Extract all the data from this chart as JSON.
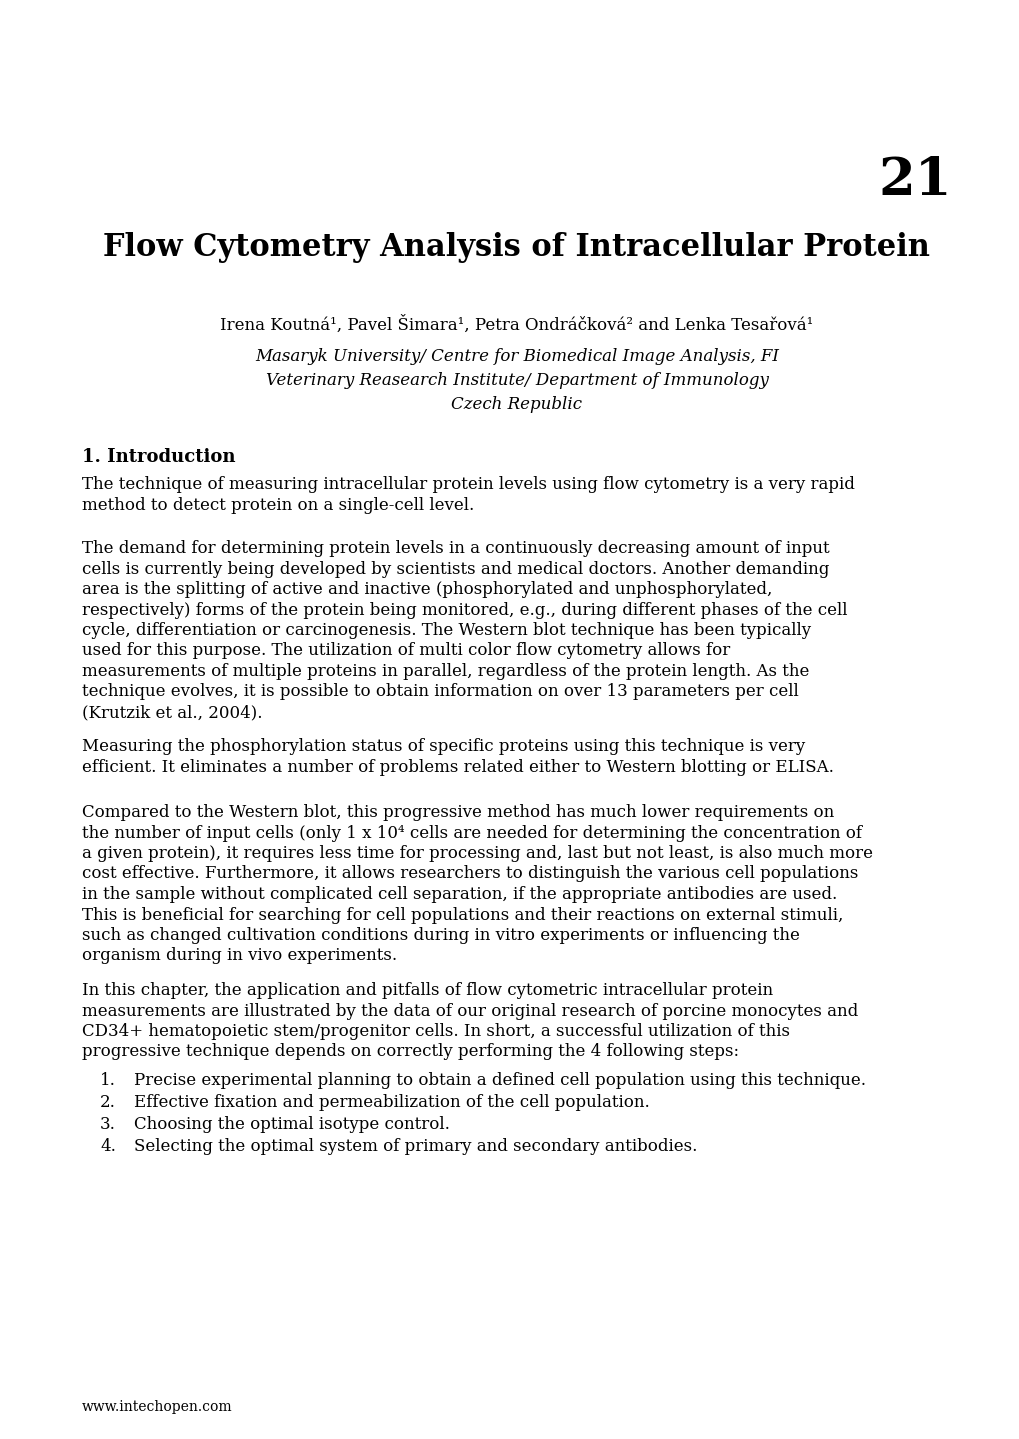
{
  "chapter_number": "21",
  "title": "Flow Cytometry Analysis of Intracellular Protein",
  "authors": "Irena Koutná¹, Pavel Šimara¹, Petra Ondráčková² and Lenka Tesařová¹",
  "affiliation1": "Masaryk University/ Centre for Biomedical Image Analysis, FI",
  "affiliation2": "Veterinary Reasearch Institute/ Department of Immunology",
  "affiliation3": "Czech Republic",
  "section_heading": "1. Introduction",
  "para1_lines": [
    "The technique of measuring intracellular protein levels using flow cytometry is a very rapid",
    "method to detect protein on a single-cell level."
  ],
  "para2_lines": [
    "The demand for determining protein levels in a continuously decreasing amount of input",
    "cells is currently being developed by scientists and medical doctors. Another demanding",
    "area is the splitting of active and inactive (phosphorylated and unphosphorylated,",
    "respectively) forms of the protein being monitored, e.g., during different phases of the cell",
    "cycle, differentiation or carcinogenesis. The Western blot technique has been typically",
    "used for this purpose. The utilization of multi color flow cytometry allows for",
    "measurements of multiple proteins in parallel, regardless of the protein length. As the",
    "technique evolves, it is possible to obtain information on over 13 parameters per cell",
    "(Krutzik et al., 2004)."
  ],
  "para3_lines": [
    "Measuring the phosphorylation status of specific proteins using this technique is very",
    "efficient. It eliminates a number of problems related either to Western blotting or ELISA."
  ],
  "para4_lines": [
    "Compared to the Western blot, this progressive method has much lower requirements on",
    "the number of input cells (only 1 x 10⁴ cells are needed for determining the concentration of",
    "a given protein), it requires less time for processing and, last but not least, is also much more",
    "cost effective. Furthermore, it allows researchers to distinguish the various cell populations",
    "in the sample without complicated cell separation, if the appropriate antibodies are used.",
    "This is beneficial for searching for cell populations and their reactions on external stimuli,",
    "such as changed cultivation conditions during in vitro experiments or influencing the",
    "organism during in vivo experiments."
  ],
  "para5_lines": [
    "In this chapter, the application and pitfalls of flow cytometric intracellular protein",
    "measurements are illustrated by the data of our original research of porcine monocytes and",
    "CD34+ hematopoietic stem/progenitor cells. In short, a successful utilization of this",
    "progressive technique depends on correctly performing the 4 following steps:"
  ],
  "list_items": [
    "Precise experimental planning to obtain a defined cell population using this technique.",
    "Effective fixation and permeabilization of the cell population.",
    "Choosing the optimal isotype control.",
    "Selecting the optimal system of primary and secondary antibodies."
  ],
  "footer": "www.intechopen.com",
  "bg_color": "#ffffff",
  "text_color": "#000000"
}
